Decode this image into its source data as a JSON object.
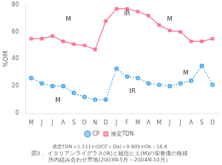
{
  "chart_data": {
    "type": "line",
    "categories": [
      "M",
      "J",
      "J",
      "A",
      "S",
      "O",
      "N",
      "D",
      "J",
      "F",
      "M",
      "A",
      "M",
      "J",
      "J",
      "A",
      "S",
      "O"
    ],
    "series": [
      {
        "name": "CP",
        "values": [
          26,
          22,
          20,
          20,
          15,
          12,
          10,
          10,
          33,
          27,
          26,
          22,
          21,
          20,
          22,
          24,
          35,
          21
        ],
        "marker": "circle",
        "line_style": "dotted"
      },
      {
        "name": "推定TDN",
        "values": [
          55,
          55,
          57,
          53,
          51,
          50,
          47,
          68,
          77,
          77,
          75,
          72,
          65,
          61,
          60,
          53,
          53,
          55
        ],
        "marker": "square",
        "line_style": "solid"
      }
    ],
    "ylabel": "%DM",
    "ylim": [
      0,
      80
    ],
    "yticks": [
      0,
      20,
      40,
      60,
      80
    ],
    "grid": false,
    "legend": "bottom",
    "annotations": [
      {
        "text": "M",
        "x": 3.5,
        "y": 67
      },
      {
        "text": "IR",
        "x": 9.0,
        "y": 71
      },
      {
        "text": "M",
        "x": 13.0,
        "y": 67
      },
      {
        "text": "M",
        "x": 2.5,
        "y": 7
      },
      {
        "text": "IR",
        "x": 9.5,
        "y": 14
      },
      {
        "text": "M",
        "x": 14.5,
        "y": 27
      }
    ],
    "formula": "推定TDN＝1.111×(OCC＋Oa)＋0.605×Ob－18.8",
    "captions": [
      "図3． イタリアンライグラス(IR)と栽培ヒエ(M)の栄養価の推移",
      "所内組み合わせ草地(2003年5月～2004年10月）"
    ]
  }
}
